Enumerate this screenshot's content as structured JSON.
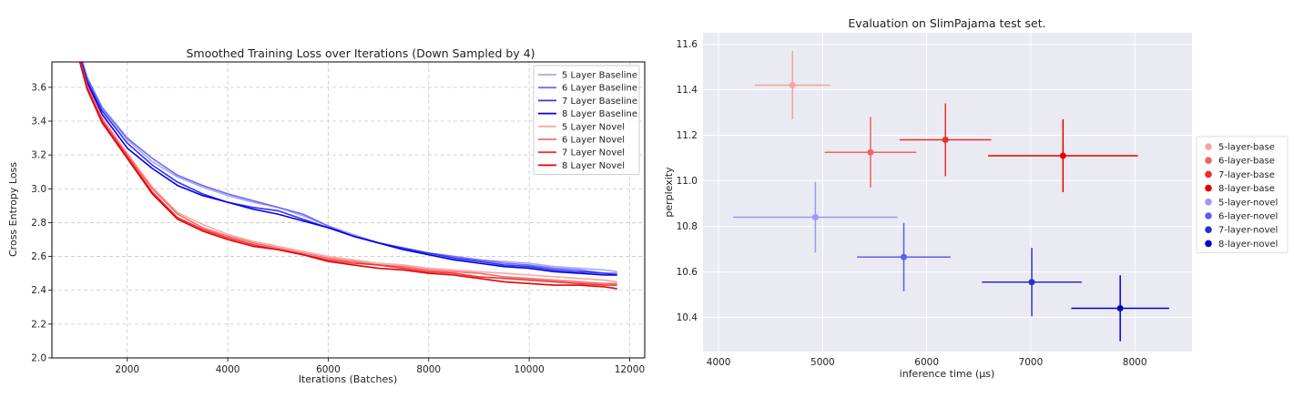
{
  "chart_data": [
    {
      "type": "line",
      "title": "Smoothed Training Loss over Iterations (Down Sampled by 4)",
      "xlabel": "Iterations (Batches)",
      "ylabel": "Cross Entropy Loss",
      "xlim": [
        500,
        12300
      ],
      "ylim": [
        2.0,
        3.75
      ],
      "xticks": [
        2000,
        4000,
        6000,
        8000,
        10000,
        12000
      ],
      "yticks": [
        2.0,
        2.2,
        2.4,
        2.6,
        2.8,
        3.0,
        3.2,
        3.4,
        3.6
      ],
      "grid": true,
      "legend_position": "top-right",
      "series": [
        {
          "name": "5 Layer Baseline",
          "color": "#a9a9f5",
          "x": [
            1000,
            1200,
            1500,
            2000,
            2500,
            3000,
            3500,
            4000,
            4500,
            5000,
            5500,
            6000,
            6500,
            7000,
            7500,
            8000,
            8500,
            9000,
            9500,
            10000,
            10500,
            11000,
            11500,
            11750
          ],
          "y": [
            3.85,
            3.65,
            3.47,
            3.29,
            3.16,
            3.07,
            3.01,
            2.96,
            2.92,
            2.89,
            2.84,
            2.78,
            2.73,
            2.68,
            2.64,
            2.62,
            2.6,
            2.58,
            2.57,
            2.56,
            2.54,
            2.53,
            2.52,
            2.51
          ]
        },
        {
          "name": "6 Layer Baseline",
          "color": "#6e6ef2",
          "x": [
            1000,
            1200,
            1500,
            2000,
            2500,
            3000,
            3500,
            4000,
            4500,
            5000,
            5500,
            6000,
            6500,
            7000,
            7500,
            8000,
            8500,
            9000,
            9500,
            10000,
            10500,
            11000,
            11500,
            11750
          ],
          "y": [
            3.86,
            3.66,
            3.48,
            3.3,
            3.18,
            3.08,
            3.02,
            2.97,
            2.93,
            2.89,
            2.85,
            2.78,
            2.72,
            2.68,
            2.64,
            2.62,
            2.6,
            2.58,
            2.56,
            2.55,
            2.53,
            2.52,
            2.5,
            2.5
          ]
        },
        {
          "name": "7 Layer Baseline",
          "color": "#3434ee",
          "x": [
            1000,
            1200,
            1500,
            2000,
            2500,
            3000,
            3500,
            4000,
            4500,
            5000,
            5500,
            6000,
            6500,
            7000,
            7500,
            8000,
            8500,
            9000,
            9500,
            10000,
            10500,
            11000,
            11500,
            11750
          ],
          "y": [
            3.84,
            3.64,
            3.46,
            3.27,
            3.14,
            3.04,
            2.97,
            2.92,
            2.89,
            2.87,
            2.82,
            2.77,
            2.72,
            2.68,
            2.65,
            2.62,
            2.59,
            2.57,
            2.55,
            2.54,
            2.52,
            2.51,
            2.5,
            2.49
          ]
        },
        {
          "name": "8 Layer Baseline",
          "color": "#0000e6",
          "x": [
            1000,
            1200,
            1500,
            2000,
            2500,
            3000,
            3500,
            4000,
            4500,
            5000,
            5500,
            6000,
            6500,
            7000,
            7500,
            8000,
            8500,
            9000,
            9500,
            10000,
            10500,
            11000,
            11500,
            11750
          ],
          "y": [
            3.83,
            3.63,
            3.44,
            3.24,
            3.12,
            3.02,
            2.96,
            2.92,
            2.88,
            2.85,
            2.81,
            2.77,
            2.72,
            2.68,
            2.64,
            2.61,
            2.58,
            2.56,
            2.54,
            2.53,
            2.51,
            2.5,
            2.49,
            2.49
          ]
        },
        {
          "name": "5 Layer Novel",
          "color": "#f7a8a8",
          "x": [
            1000,
            1200,
            1500,
            2000,
            2500,
            3000,
            3500,
            4000,
            4500,
            5000,
            5500,
            6000,
            6500,
            7000,
            7500,
            8000,
            8500,
            9000,
            9500,
            10000,
            10500,
            11000,
            11500,
            11750
          ],
          "y": [
            3.82,
            3.61,
            3.42,
            3.21,
            3.01,
            2.86,
            2.79,
            2.73,
            2.69,
            2.66,
            2.63,
            2.6,
            2.58,
            2.56,
            2.55,
            2.53,
            2.52,
            2.51,
            2.5,
            2.49,
            2.48,
            2.47,
            2.46,
            2.45
          ]
        },
        {
          "name": "6 Layer Novel",
          "color": "#f26e6e",
          "x": [
            1000,
            1200,
            1500,
            2000,
            2500,
            3000,
            3500,
            4000,
            4500,
            5000,
            5500,
            6000,
            6500,
            7000,
            7500,
            8000,
            8500,
            9000,
            9500,
            10000,
            10500,
            11000,
            11500,
            11750
          ],
          "y": [
            3.82,
            3.61,
            3.41,
            3.2,
            3.0,
            2.85,
            2.77,
            2.72,
            2.68,
            2.65,
            2.62,
            2.59,
            2.57,
            2.55,
            2.54,
            2.52,
            2.51,
            2.5,
            2.48,
            2.47,
            2.46,
            2.45,
            2.44,
            2.44
          ]
        },
        {
          "name": "7 Layer Novel",
          "color": "#ee3434",
          "x": [
            1000,
            1200,
            1500,
            2000,
            2500,
            3000,
            3500,
            4000,
            4500,
            5000,
            5500,
            6000,
            6500,
            7000,
            7500,
            8000,
            8500,
            9000,
            9500,
            10000,
            10500,
            11000,
            11500,
            11750
          ],
          "y": [
            3.82,
            3.6,
            3.4,
            3.19,
            2.98,
            2.83,
            2.76,
            2.71,
            2.67,
            2.64,
            2.61,
            2.58,
            2.56,
            2.55,
            2.53,
            2.51,
            2.5,
            2.48,
            2.47,
            2.46,
            2.45,
            2.44,
            2.43,
            2.43
          ]
        },
        {
          "name": "8 Layer Novel",
          "color": "#e60000",
          "x": [
            1000,
            1200,
            1500,
            2000,
            2500,
            3000,
            3500,
            4000,
            4500,
            5000,
            5500,
            6000,
            6500,
            7000,
            7500,
            8000,
            8500,
            9000,
            9500,
            10000,
            10500,
            11000,
            11500,
            11750
          ],
          "y": [
            3.81,
            3.59,
            3.39,
            3.18,
            2.97,
            2.82,
            2.75,
            2.7,
            2.66,
            2.64,
            2.61,
            2.57,
            2.55,
            2.53,
            2.52,
            2.5,
            2.49,
            2.47,
            2.45,
            2.44,
            2.43,
            2.43,
            2.42,
            2.41
          ]
        }
      ]
    },
    {
      "type": "scatter",
      "title": "Evaluation on SlimPajama test set.",
      "xlabel": "inference time (μs)",
      "ylabel": "perplexity",
      "xlim": [
        3850,
        8550
      ],
      "ylim": [
        10.25,
        11.65
      ],
      "xticks": [
        4000,
        5000,
        6000,
        7000,
        8000
      ],
      "yticks": [
        10.4,
        10.6,
        10.8,
        11.0,
        11.2,
        11.4,
        11.6
      ],
      "grid": true,
      "background": "#eaeaf2",
      "legend_position": "outside-right",
      "series": [
        {
          "name": "5-layer-base",
          "color": "#f3a3a3",
          "x": 4710,
          "y": 11.42,
          "xerr": 360,
          "yerr": 0.15
        },
        {
          "name": "6-layer-base",
          "color": "#ee6464",
          "x": 5460,
          "y": 11.125,
          "xerr": 440,
          "yerr": 0.155
        },
        {
          "name": "7-layer-base",
          "color": "#ec2e2e",
          "x": 6180,
          "y": 11.18,
          "xerr": 440,
          "yerr": 0.16
        },
        {
          "name": "8-layer-base",
          "color": "#e60000",
          "x": 7310,
          "y": 11.11,
          "xerr": 720,
          "yerr": 0.16
        },
        {
          "name": "5-layer-novel",
          "color": "#9a9af3",
          "x": 4930,
          "y": 10.84,
          "xerr": 790,
          "yerr": 0.155
        },
        {
          "name": "6-layer-novel",
          "color": "#5d5df0",
          "x": 5780,
          "y": 10.665,
          "xerr": 450,
          "yerr": 0.15
        },
        {
          "name": "7-layer-novel",
          "color": "#2b2bd8",
          "x": 7010,
          "y": 10.555,
          "xerr": 480,
          "yerr": 0.15
        },
        {
          "name": "8-layer-novel",
          "color": "#0000c8",
          "x": 7860,
          "y": 10.44,
          "xerr": 470,
          "yerr": 0.145
        }
      ]
    }
  ]
}
